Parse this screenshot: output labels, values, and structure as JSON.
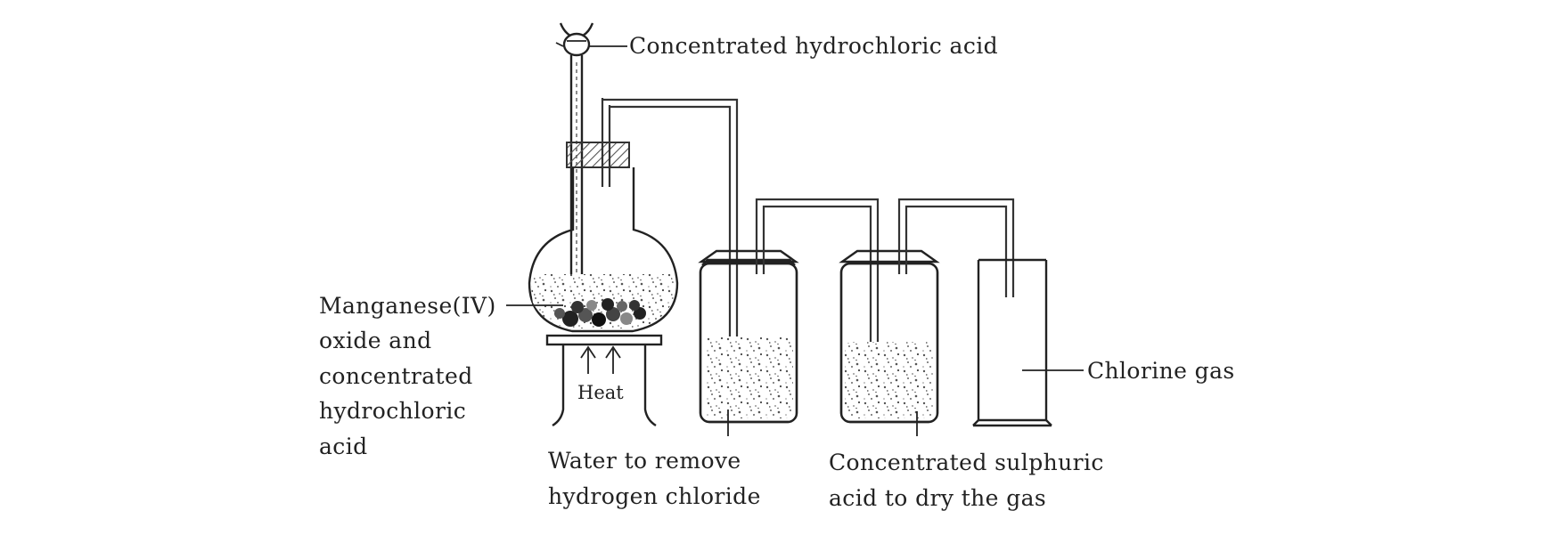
{
  "labels": {
    "funnel_acid": "Concentrated hydrochloric acid",
    "reactants": [
      "Manganese(IV)",
      "oxide and",
      "concentrated",
      "hydrochloric",
      "acid"
    ],
    "heat": "Heat",
    "water_wash": [
      "Water to remove",
      "hydrogen chloride"
    ],
    "drying_acid": [
      "Concentrated sulphuric",
      "acid to dry the gas"
    ],
    "product": "Chlorine gas"
  },
  "colors": {
    "ink": "#222222",
    "hatch": "#555555",
    "liquid_speckle": "#444444"
  }
}
